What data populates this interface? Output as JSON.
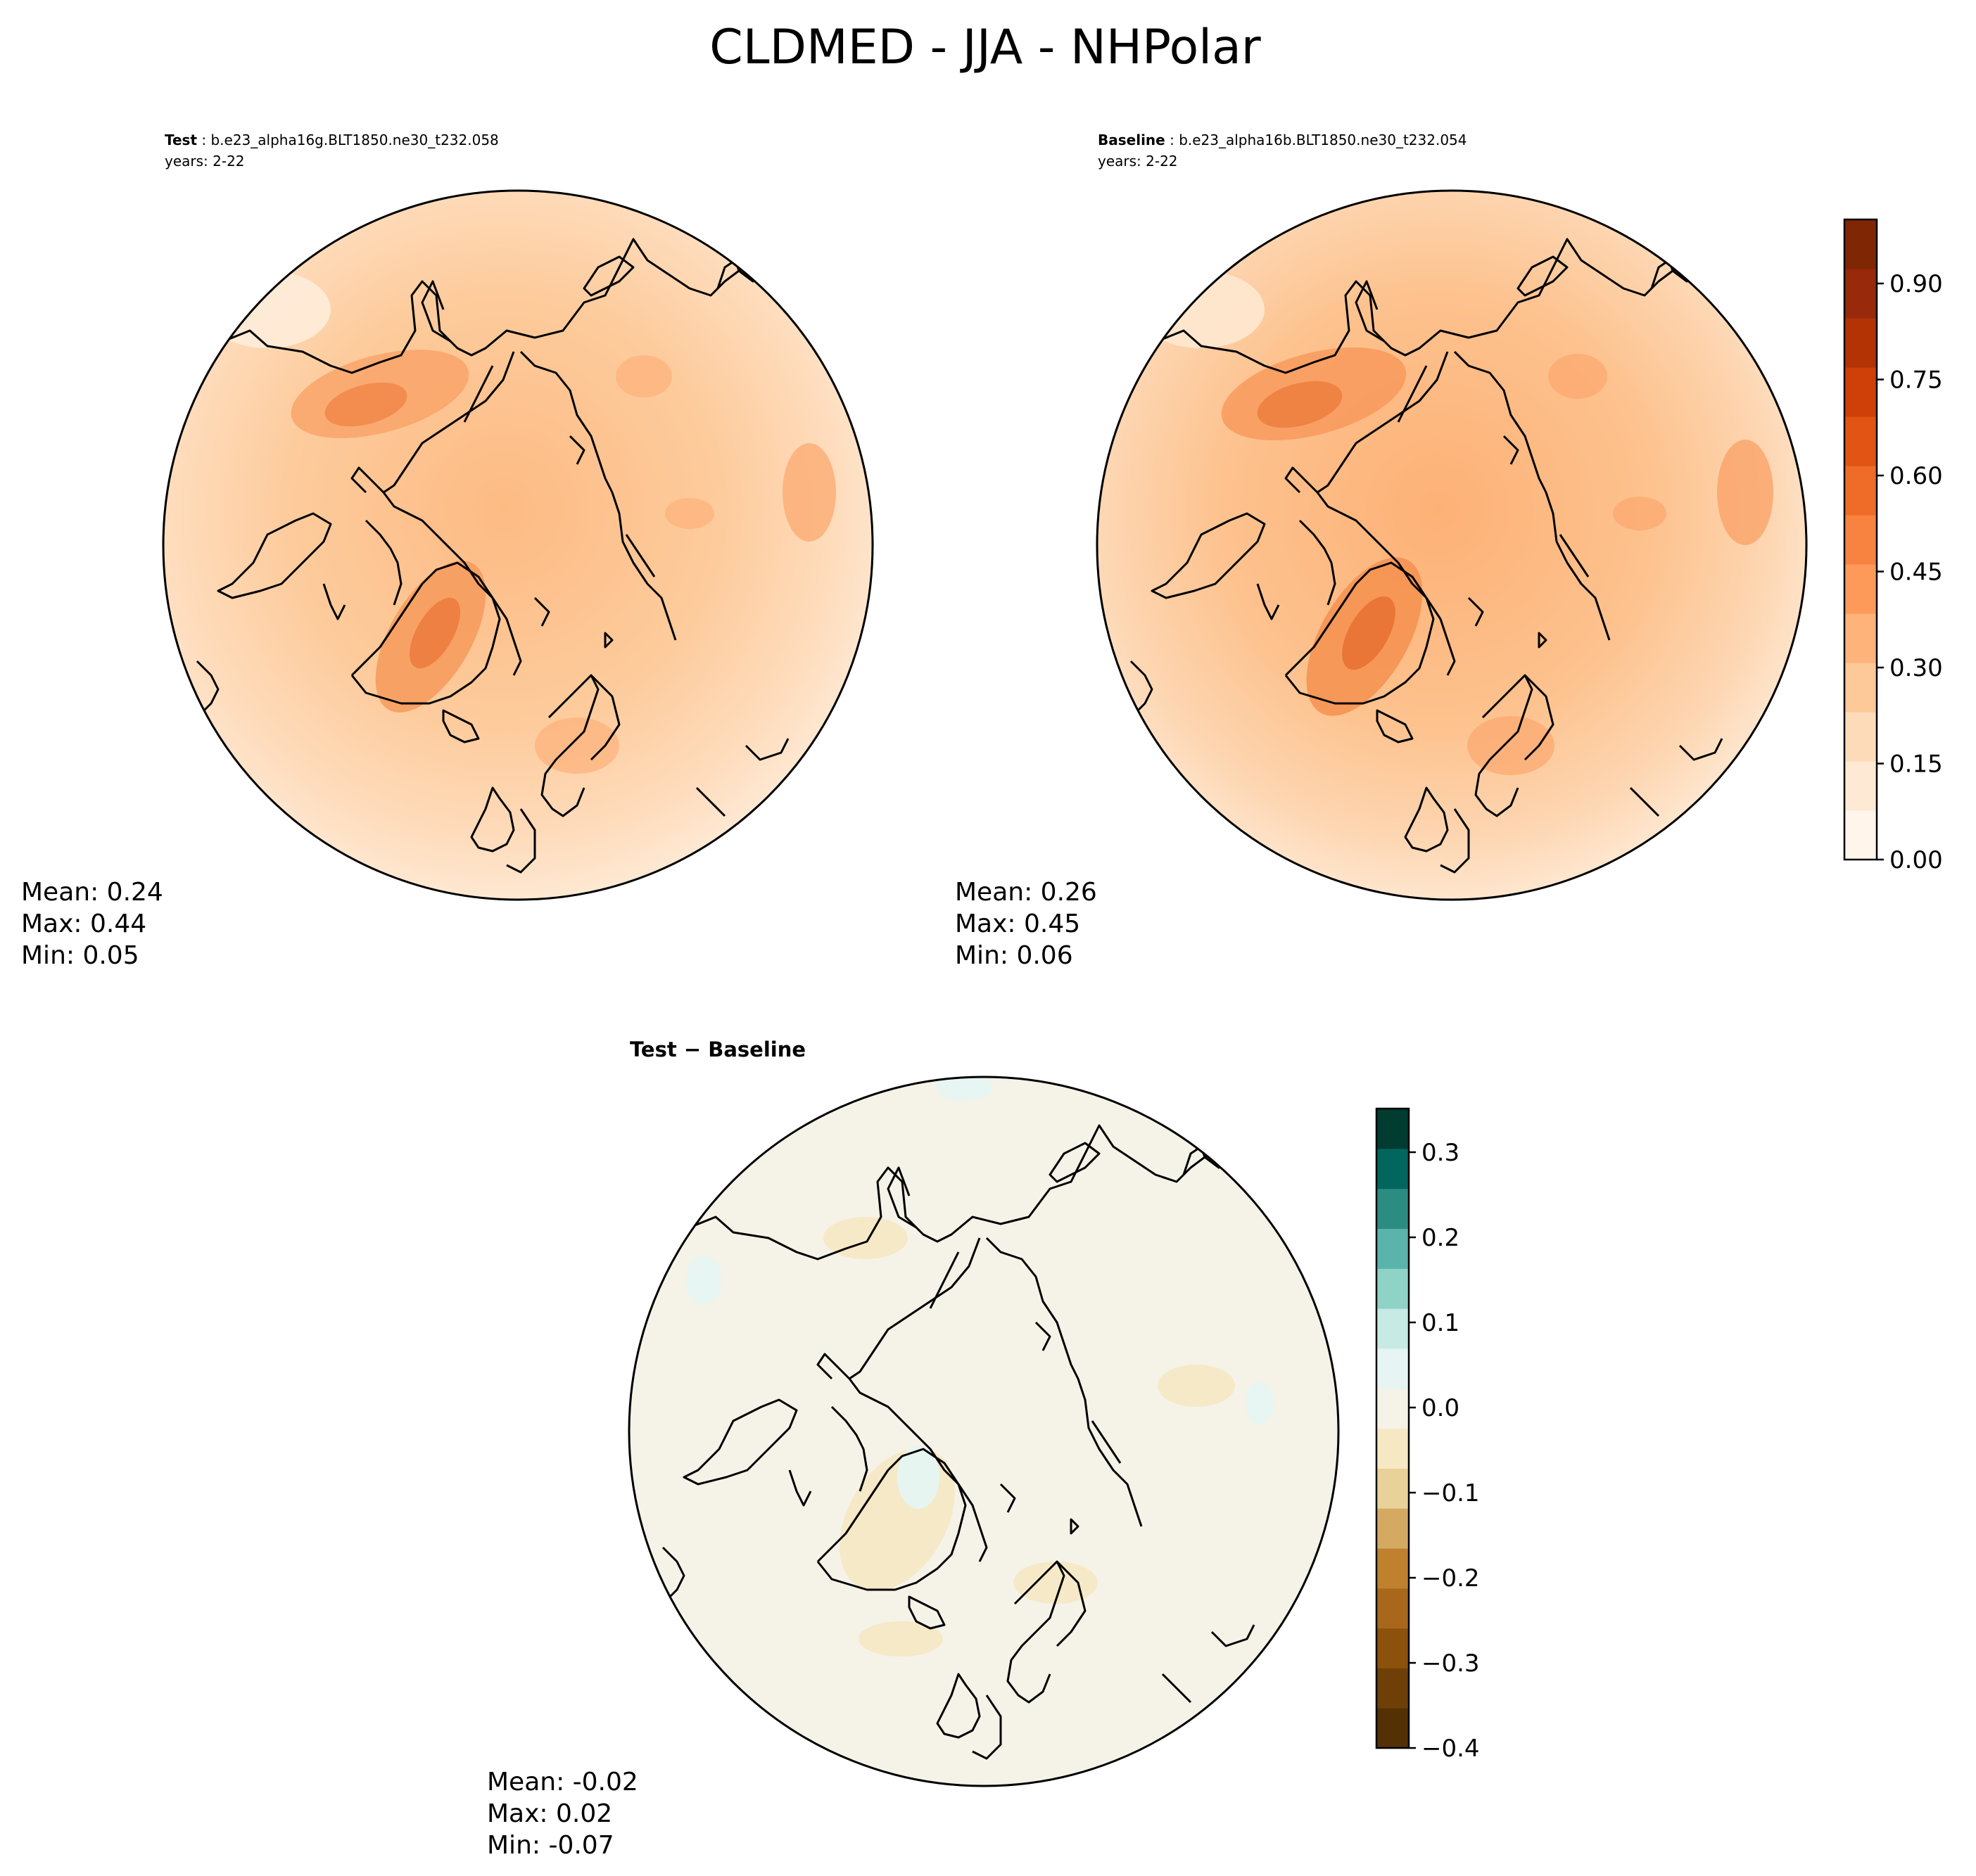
{
  "figure": {
    "title": "CLDMED - JJA - NHPolar"
  },
  "panels": [
    {
      "id": "test",
      "label": "Test",
      "case": "b.e23_alpha16g.BLT1850.ne30_t232.058",
      "years": "years: 2-22",
      "stats": {
        "mean": "Mean:  0.24",
        "max": "Max:  0.44",
        "min": "Min:  0.05"
      }
    },
    {
      "id": "baseline",
      "label": "Baseline",
      "case": "b.e23_alpha16b.BLT1850.ne30_t232.054",
      "years": "years: 2-22",
      "stats": {
        "mean": "Mean:  0.26",
        "max": "Max:  0.45",
        "min": "Min:  0.06"
      }
    },
    {
      "id": "diff",
      "label": "Test − Baseline",
      "stats": {
        "mean": "Mean: -0.02",
        "max": "Max:  0.02",
        "min": "Min: -0.07"
      }
    }
  ],
  "colorbars": {
    "main": {
      "ticks": [
        "0.00",
        "0.15",
        "0.30",
        "0.45",
        "0.60",
        "0.75",
        "0.90"
      ],
      "colors": [
        "#fff5eb",
        "#fee9d4",
        "#fddbb9",
        "#fdc998",
        "#fdb379",
        "#fd9a5a",
        "#f8823f",
        "#ef6c28",
        "#e25414",
        "#cf4009",
        "#b33305",
        "#98290a",
        "#7f2704"
      ]
    },
    "diff": {
      "ticks": [
        "0.3",
        "0.2",
        "0.1",
        "0.0",
        "−0.1",
        "−0.2",
        "−0.3",
        "−0.4"
      ],
      "colors": [
        "#543005",
        "#6f3f08",
        "#8c510a",
        "#a9671b",
        "#bf812d",
        "#d4aa62",
        "#e8d299",
        "#f6e8c3",
        "#f5f2e8",
        "#e6f5f3",
        "#c7eae5",
        "#8fd2c6",
        "#5ab4ac",
        "#2b8c82",
        "#01665e",
        "#003c30"
      ]
    }
  }
}
